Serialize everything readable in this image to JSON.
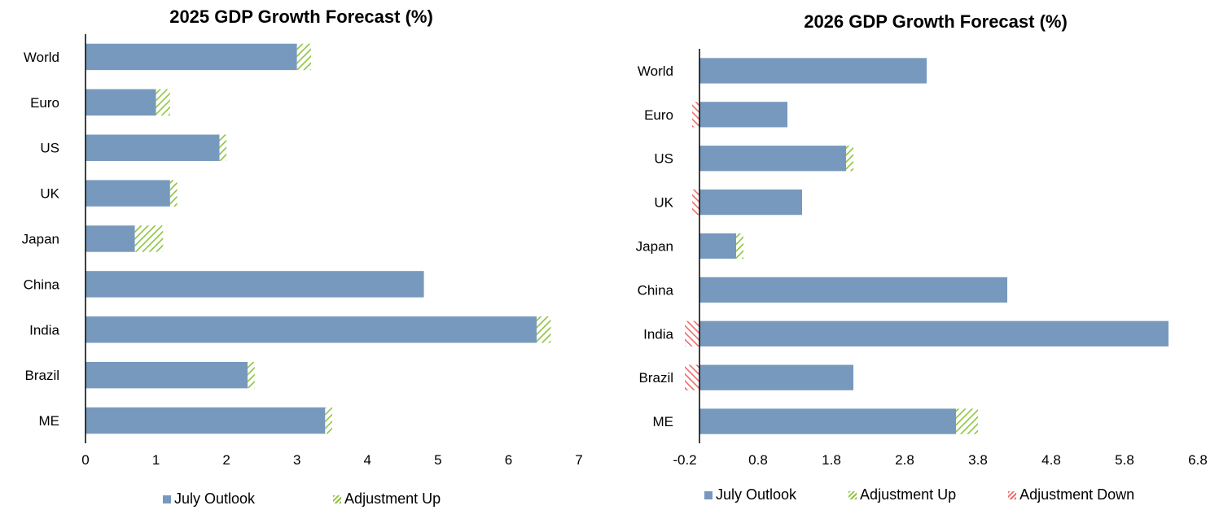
{
  "colors": {
    "july": "#7799bd",
    "adj_up": "#8fc43f",
    "adj_down": "#ef6b6b",
    "axis": "#000000"
  },
  "chart_data": [
    {
      "type": "bar",
      "orientation": "horizontal",
      "stacked": true,
      "title": "2025 GDP Growth Forecast (%)",
      "categories": [
        "World",
        "Euro",
        "US",
        "UK",
        "Japan",
        "China",
        "India",
        "Brazil",
        "ME"
      ],
      "series": [
        {
          "name": "July Outlook",
          "values": [
            3.0,
            1.0,
            1.9,
            1.2,
            0.7,
            4.8,
            6.4,
            2.3,
            3.4
          ]
        },
        {
          "name": "Adjustment Up",
          "values": [
            0.2,
            0.2,
            0.1,
            0.1,
            0.4,
            0.0,
            0.2,
            0.1,
            0.1
          ]
        }
      ],
      "xlim": [
        0,
        7
      ],
      "xticks": [
        "0",
        "1",
        "2",
        "3",
        "4",
        "5",
        "6",
        "7"
      ],
      "legend": "bottom",
      "grid": false
    },
    {
      "type": "bar",
      "orientation": "horizontal",
      "stacked": true,
      "title": "2026 GDP Growth Forecast (%)",
      "categories": [
        "World",
        "Euro",
        "US",
        "UK",
        "Japan",
        "China",
        "India",
        "Brazil",
        "ME"
      ],
      "series": [
        {
          "name": "July Outlook",
          "values": [
            3.1,
            1.2,
            2.0,
            1.4,
            0.5,
            4.2,
            6.4,
            2.1,
            3.5
          ]
        },
        {
          "name": "Adjustment Up",
          "values": [
            0.0,
            0.0,
            0.1,
            0.0,
            0.1,
            0.0,
            0.0,
            0.0,
            0.3
          ]
        },
        {
          "name": "Adjustment Down",
          "values": [
            0.0,
            -0.1,
            0.0,
            -0.1,
            0.0,
            0.0,
            -0.2,
            -0.2,
            0.0
          ]
        }
      ],
      "xlim": [
        -0.2,
        6.8
      ],
      "xticks": [
        "-0.2",
        "0.8",
        "1.8",
        "2.8",
        "3.8",
        "4.8",
        "5.8",
        "6.8"
      ],
      "legend": "bottom",
      "grid": false
    }
  ]
}
